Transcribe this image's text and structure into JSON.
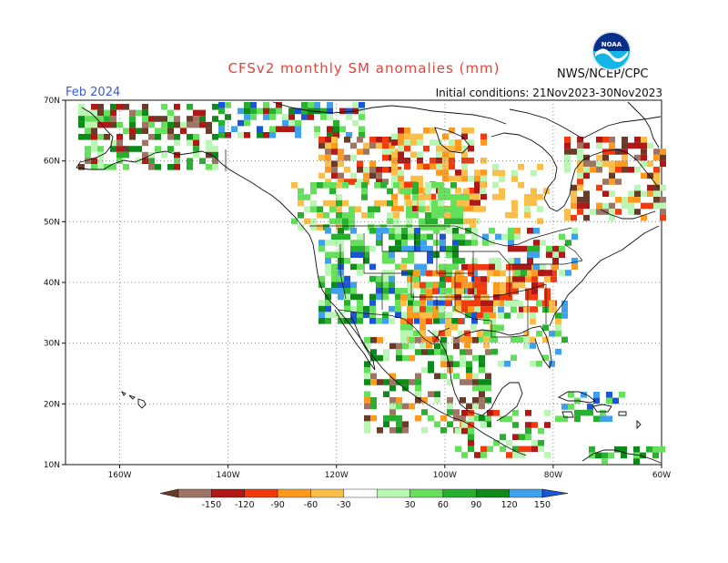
{
  "header": {
    "title": "CFSv2 monthly SM anomalies (mm)",
    "valid_month": "Feb 2024",
    "initial_conditions": "Initial conditions: 21Nov2023-30Nov2023",
    "agency": "NWS/NCEP/CPC",
    "logo_text": "NOAA"
  },
  "axes": {
    "lat_labels": [
      "70N",
      "60N",
      "50N",
      "40N",
      "30N",
      "20N",
      "10N"
    ],
    "lon_labels": [
      "160W",
      "140W",
      "120W",
      "100W",
      "80W",
      "60W"
    ],
    "lat_range": [
      10,
      70
    ],
    "lon_range": [
      -170,
      -60
    ],
    "grid": "dotted"
  },
  "colorbar": {
    "labels": [
      "-150",
      "-120",
      "-90",
      "-60",
      "-30",
      "30",
      "60",
      "90",
      "120",
      "150"
    ],
    "colors": [
      "#6b3b2a",
      "#9e7464",
      "#b01818",
      "#f23a0e",
      "#ff9a1f",
      "#fbbf49",
      "#ffffff",
      "#b9f5b3",
      "#64e05b",
      "#26b02e",
      "#0e8a1a",
      "#3fa0ee",
      "#1a55d8"
    ]
  },
  "colors": {
    "title": "#e8413a",
    "valid_month": "#3a5bd9"
  }
}
